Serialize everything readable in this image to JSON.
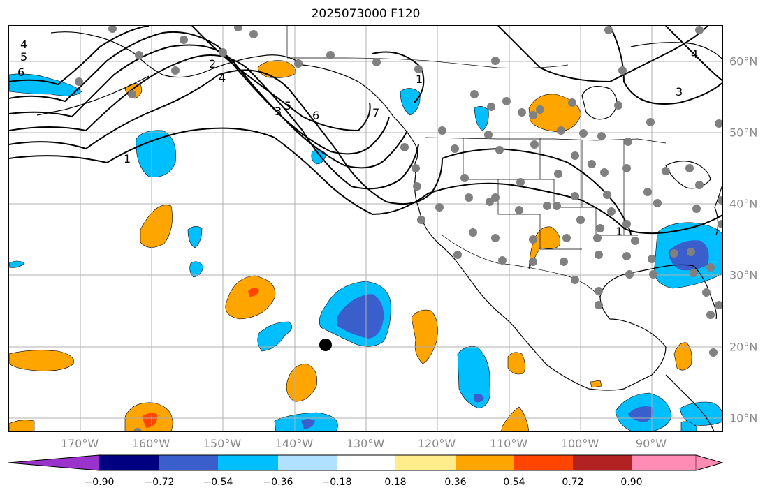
{
  "title": "2025073000 F120",
  "lon_labels": [
    "170°W",
    "160°W",
    "150°W",
    "140°W",
    "130°W",
    "120°W",
    "110°W",
    "100°W",
    "90°W"
  ],
  "lat_labels": [
    "60°N",
    "50°N",
    "40°N",
    "30°N",
    "20°N",
    "10°N"
  ],
  "contour_labels": [
    "4",
    "5",
    "6",
    "1",
    "2",
    "3",
    "4",
    "5",
    "6",
    "7",
    "1",
    "4",
    "3",
    "1"
  ],
  "colorbar": {
    "tick_labels": [
      "−0.90",
      "−0.72",
      "−0.54",
      "−0.36",
      "−0.18",
      "0.18",
      "0.36",
      "0.54",
      "0.72",
      "0.90"
    ],
    "colors": [
      "#9933cc",
      "#000080",
      "#3a5fcd",
      "#00bfff",
      "#b0e2ff",
      "#ffffff",
      "#ffec8b",
      "#ffa500",
      "#ff4500",
      "#b22222",
      "#ff8cb4"
    ]
  },
  "colors": {
    "orange": "#ffa500",
    "light_blue": "#00bfff",
    "dark_blue": "#3a5fcd",
    "red_orange": "#ff4500",
    "station_dot": "#808080",
    "storm_marker": "#000000"
  }
}
